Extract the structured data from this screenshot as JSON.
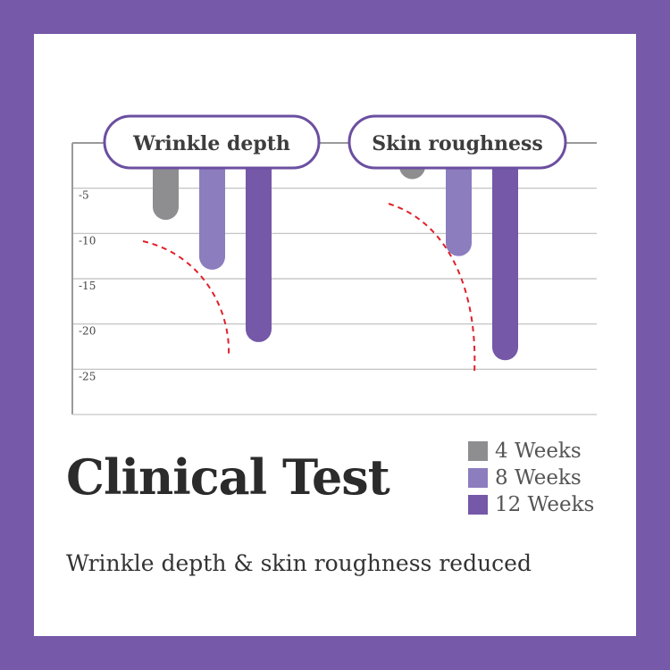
{
  "chart_data": {
    "type": "bar",
    "categories": [
      "Wrinkle depth",
      "Skin roughness"
    ],
    "series": [
      {
        "name": "4 Weeks",
        "color": "#8e8e90",
        "values": [
          -8.5,
          -4
        ]
      },
      {
        "name": "8 Weeks",
        "color": "#8c7dbe",
        "values": [
          -14,
          -12.5
        ]
      },
      {
        "name": "12 Weeks",
        "color": "#7558a8",
        "values": [
          -22,
          -24
        ]
      }
    ],
    "ylim": [
      -30,
      0
    ],
    "yticks": [
      "-5",
      "-10",
      "-15",
      "-20",
      "-25"
    ],
    "ytick_values": [
      -5,
      -10,
      -15,
      -20,
      -25
    ],
    "grid": true,
    "legend": "bottom-right",
    "annotation": "red dashed trend curve under each group"
  },
  "title": "Clinical Test",
  "subtitle": "Wrinkle depth & skin roughness reduced",
  "colors": {
    "frame": "#7659a8",
    "grid": "#bdbdbd",
    "axis": "#9a9a9a",
    "trend": "#e0202a",
    "text": "#2b2b2b"
  }
}
